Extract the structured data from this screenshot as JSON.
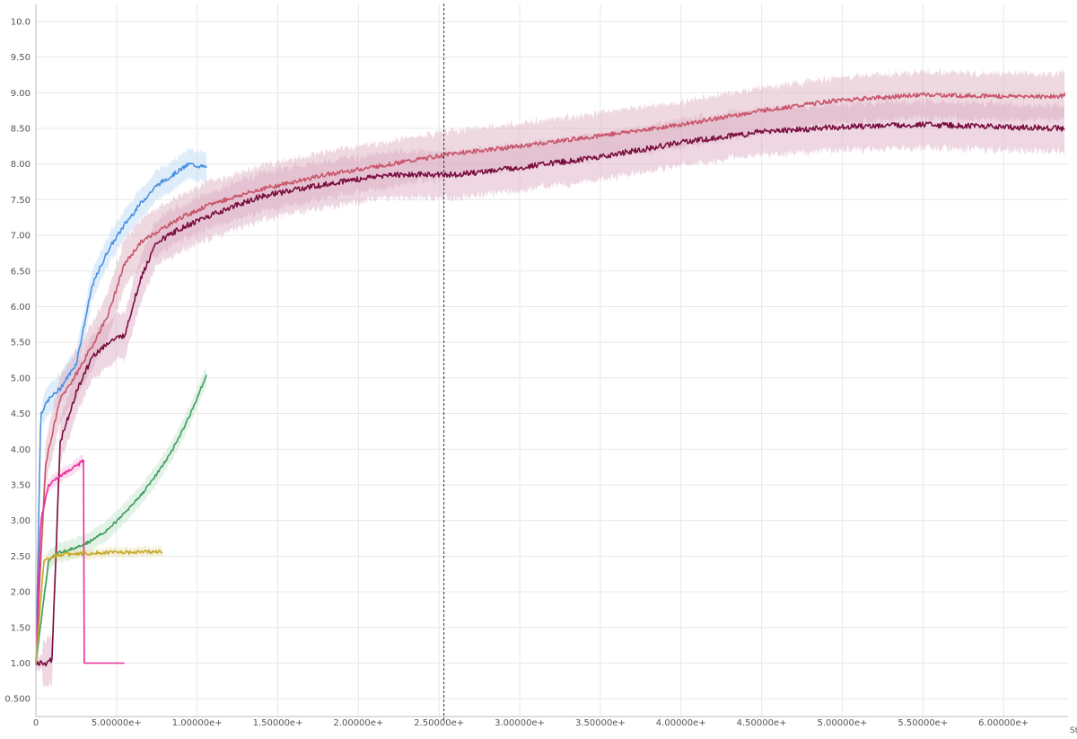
{
  "chart_data": {
    "type": "line",
    "title": "",
    "xlabel": "Step",
    "ylabel": "",
    "xlim": [
      0,
      6400000
    ],
    "ylim": [
      0.25,
      10.25
    ],
    "grid": true,
    "legend": "none",
    "y_ticks": [
      0.5,
      1.0,
      1.5,
      2.0,
      2.5,
      3.0,
      3.5,
      4.0,
      4.5,
      5.0,
      5.5,
      6.0,
      6.5,
      7.0,
      7.5,
      8.0,
      8.5,
      9.0,
      9.5,
      10.0
    ],
    "y_tick_labels": [
      "0.500",
      "1.00",
      "1.50",
      "2.00",
      "2.50",
      "3.00",
      "3.50",
      "4.00",
      "4.50",
      "5.00",
      "5.50",
      "6.00",
      "6.50",
      "7.00",
      "7.50",
      "8.00",
      "8.50",
      "9.00",
      "9.50",
      "10.0"
    ],
    "x_ticks": [
      0,
      500000,
      1000000,
      1500000,
      2000000,
      2500000,
      3000000,
      3500000,
      4000000,
      4500000,
      5000000,
      5500000,
      6000000
    ],
    "x_tick_labels": [
      "0",
      "5.00000e+",
      "1.00000e+",
      "1.50000e+",
      "2.00000e+",
      "2.50000e+",
      "3.00000e+",
      "3.50000e+",
      "4.00000e+",
      "4.50000e+",
      "5.00000e+",
      "5.50000e+",
      "6.00000e+"
    ],
    "cursor_x": 2530000,
    "series": [
      {
        "color": "#4a90e2",
        "band": "#b9d6f7",
        "band_width": 0.18,
        "noise": 0.03,
        "x": [
          0,
          30000,
          80000,
          150000,
          250000,
          350000,
          450000,
          550000,
          650000,
          750000,
          850000,
          950000,
          1060000
        ],
        "y": [
          1.0,
          4.5,
          4.7,
          4.85,
          5.2,
          6.3,
          6.8,
          7.15,
          7.45,
          7.7,
          7.85,
          8.0,
          7.95
        ]
      },
      {
        "color": "#c9556b",
        "band": "#dcaabb",
        "band_width": 0.28,
        "noise": 0.03,
        "x": [
          0,
          60000,
          150000,
          250000,
          350000,
          450000,
          550000,
          650000,
          750000,
          900000,
          1100000,
          1400000,
          1800000,
          2200000,
          2600000,
          3000000,
          3500000,
          4000000,
          4500000,
          5000000,
          5500000,
          6000000,
          6380000
        ],
        "y": [
          1.0,
          3.8,
          4.7,
          5.05,
          5.45,
          5.9,
          6.6,
          6.9,
          7.05,
          7.25,
          7.45,
          7.65,
          7.85,
          8.0,
          8.15,
          8.25,
          8.4,
          8.55,
          8.75,
          8.9,
          8.97,
          8.95,
          8.95
        ],
        "tail": {
          "x": 6380000,
          "y": 9.0
        }
      },
      {
        "color": "#7a1040",
        "band": "#d9a6be",
        "band_width": 0.28,
        "noise": 0.04,
        "x": [
          0,
          60000,
          100000,
          150000,
          250000,
          350000,
          450000,
          550000,
          650000,
          750000,
          900000,
          1100000,
          1400000,
          1800000,
          2200000,
          2600000,
          3000000,
          3500000,
          4000000,
          4500000,
          5000000,
          5500000,
          6000000,
          6380000
        ],
        "y": [
          1.0,
          1.0,
          1.05,
          4.1,
          4.8,
          5.3,
          5.5,
          5.6,
          6.4,
          6.9,
          7.1,
          7.3,
          7.55,
          7.72,
          7.85,
          7.85,
          7.95,
          8.1,
          8.3,
          8.45,
          8.52,
          8.55,
          8.52,
          8.5
        ]
      },
      {
        "color": "#3e9d5d",
        "band": "#bfe3ca",
        "band_width": 0.12,
        "noise": 0.02,
        "x": [
          0,
          80000,
          150000,
          250000,
          350000,
          450000,
          550000,
          650000,
          750000,
          850000,
          950000,
          1060000
        ],
        "y": [
          1.0,
          2.45,
          2.55,
          2.62,
          2.72,
          2.88,
          3.1,
          3.35,
          3.65,
          4.0,
          4.45,
          5.05
        ]
      },
      {
        "color": "#e8309a",
        "band": "#f6b8da",
        "band_width": 0.08,
        "noise": 0.025,
        "x": [
          0,
          30000,
          80000,
          150000,
          220000,
          300000
        ],
        "y": [
          1.0,
          3.0,
          3.5,
          3.62,
          3.72,
          3.84
        ],
        "drop": {
          "x": 300000,
          "to": 1.0,
          "end": 550000
        }
      },
      {
        "color": "#c6a82a",
        "band": "#ece3b3",
        "band_width": 0.06,
        "noise": 0.025,
        "x": [
          0,
          50000,
          150000,
          300000,
          500000,
          700000,
          790000
        ],
        "y": [
          1.0,
          2.45,
          2.52,
          2.54,
          2.55,
          2.56,
          2.57
        ]
      }
    ]
  }
}
